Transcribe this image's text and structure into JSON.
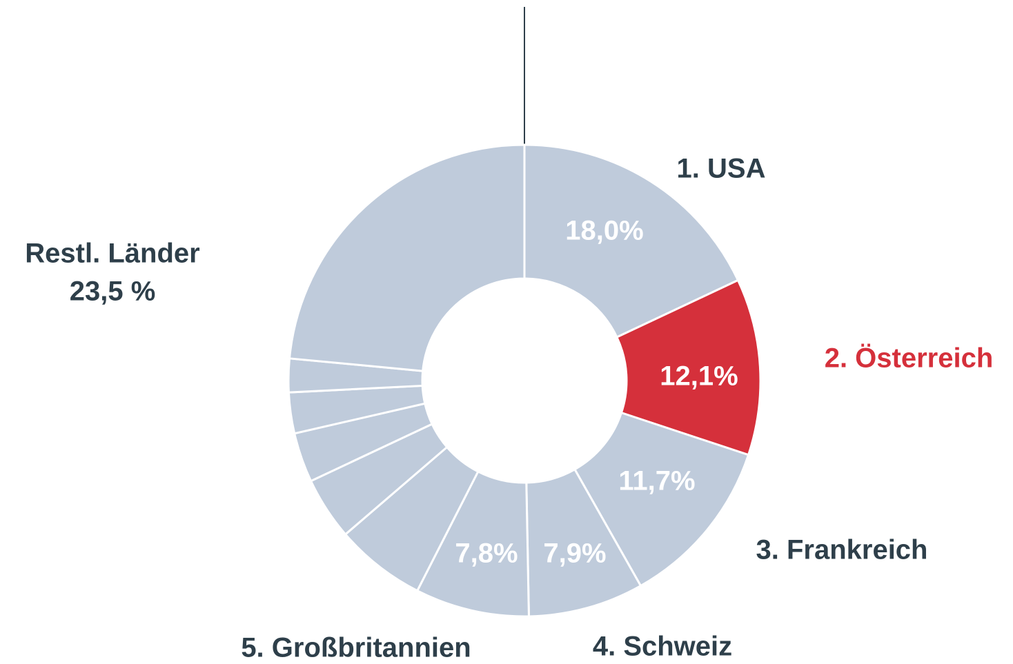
{
  "chart_data": {
    "type": "donut",
    "categories": [
      "1. USA",
      "2. Österreich",
      "3. Frankreich",
      "4. Schweiz",
      "5. Großbritannien",
      null,
      null,
      null,
      null,
      null,
      "Restl. Länder"
    ],
    "values": [
      18.0,
      12.1,
      11.7,
      7.9,
      7.8,
      6.2,
      4.3,
      3.4,
      2.8,
      2.3,
      23.5
    ],
    "value_labels": [
      "18,0%",
      "12,1%",
      "11,7%",
      "7,9%",
      "7,8%",
      null,
      null,
      null,
      null,
      null,
      "23,5 %"
    ],
    "colors": [
      "#bfcbdb",
      "#d5303b",
      "#bfcbdb",
      "#bfcbdb",
      "#bfcbdb",
      "#bfcbdb",
      "#bfcbdb",
      "#bfcbdb",
      "#bfcbdb",
      "#bfcbdb",
      "#bfcbdb"
    ],
    "label_colors": [
      "#2e3f4a",
      "#d5303b",
      "#2e3f4a",
      "#2e3f4a",
      "#2e3f4a",
      null,
      null,
      null,
      null,
      null,
      "#2e3f4a"
    ]
  }
}
